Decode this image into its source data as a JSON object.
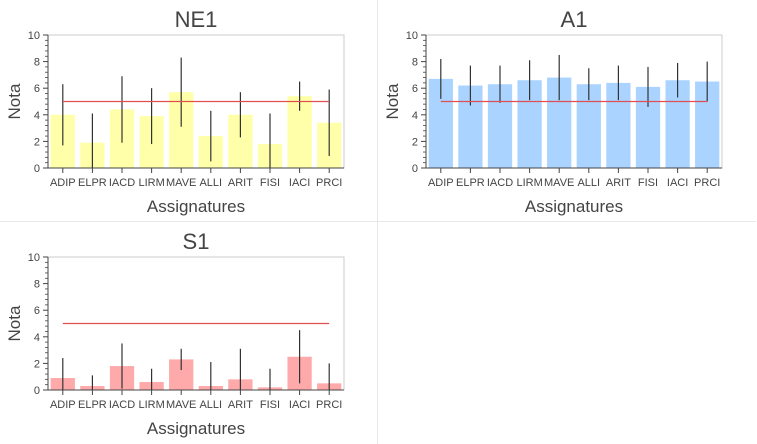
{
  "chart_data": [
    {
      "type": "bar",
      "title": "NE1",
      "xlabel": "Assignatures",
      "ylabel": "Nota",
      "ylim": [
        0,
        10
      ],
      "yticks": [
        0,
        2,
        4,
        6,
        8,
        10
      ],
      "grid": false,
      "categories": [
        "ADIP",
        "ELPR",
        "IACD",
        "LIRM",
        "MAVE",
        "ALLI",
        "ARIT",
        "FISI",
        "IACI",
        "PRCI"
      ],
      "values": [
        4.0,
        1.9,
        4.4,
        3.9,
        5.7,
        2.4,
        4.0,
        1.8,
        5.4,
        3.4
      ],
      "error": [
        2.3,
        2.2,
        2.5,
        2.1,
        2.6,
        1.9,
        1.7,
        2.3,
        1.1,
        2.5
      ],
      "threshold": 5,
      "bar_color": "#ffffaa",
      "line_color": "#e05050"
    },
    {
      "type": "bar",
      "title": "A1",
      "xlabel": "Assignatures",
      "ylabel": "Nota",
      "ylim": [
        0,
        10
      ],
      "yticks": [
        0,
        2,
        4,
        6,
        8,
        10
      ],
      "grid": false,
      "categories": [
        "ADIP",
        "ELPR",
        "IACD",
        "LIRM",
        "MAVE",
        "ALLI",
        "ARIT",
        "FISI",
        "IACI",
        "PRCI"
      ],
      "values": [
        6.7,
        6.2,
        6.3,
        6.6,
        6.8,
        6.3,
        6.4,
        6.1,
        6.6,
        6.5
      ],
      "error": [
        1.5,
        1.5,
        1.4,
        1.5,
        1.7,
        1.2,
        1.3,
        1.5,
        1.3,
        1.5
      ],
      "threshold": 5,
      "bar_color": "#aad4ff",
      "line_color": "#e05050"
    },
    {
      "type": "bar",
      "title": "S1",
      "xlabel": "Assignatures",
      "ylabel": "Nota",
      "ylim": [
        0,
        10
      ],
      "yticks": [
        0,
        2,
        4,
        6,
        8,
        10
      ],
      "grid": false,
      "categories": [
        "ADIP",
        "ELPR",
        "IACD",
        "LIRM",
        "MAVE",
        "ALLI",
        "ARIT",
        "FISI",
        "IACI",
        "PRCI"
      ],
      "values": [
        0.9,
        0.3,
        1.8,
        0.6,
        2.3,
        0.3,
        0.8,
        0.2,
        2.5,
        0.5
      ],
      "error": [
        1.5,
        0.8,
        1.7,
        1.0,
        0.8,
        1.8,
        2.3,
        1.4,
        2.0,
        1.5
      ],
      "threshold": 5,
      "bar_color": "#ffaaaa",
      "line_color": "#e05050"
    }
  ]
}
